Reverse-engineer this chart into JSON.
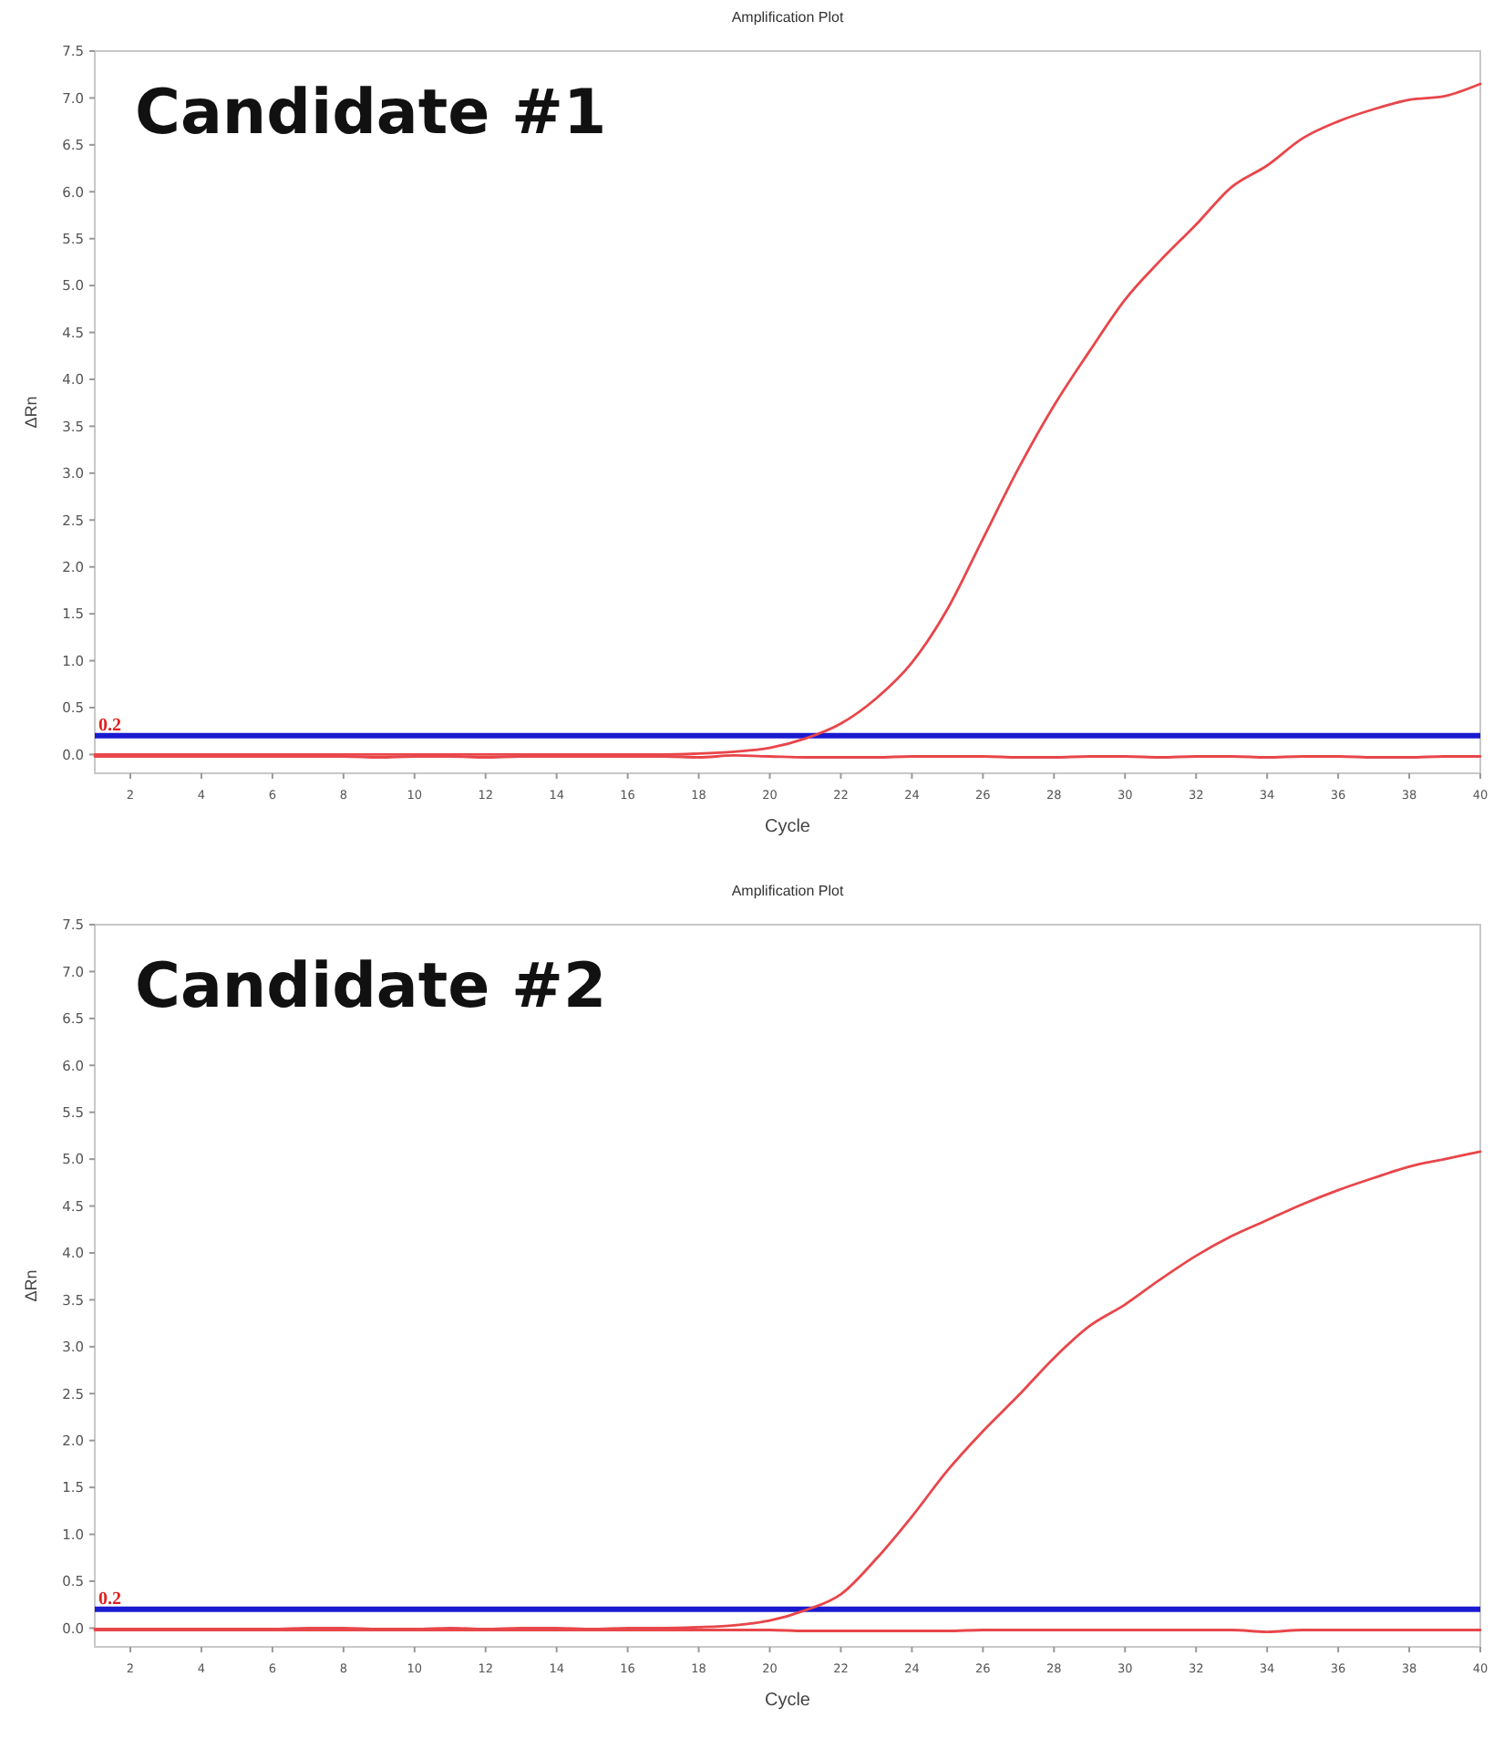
{
  "chart_data": [
    {
      "type": "line",
      "title": "Amplification Plot",
      "xlabel": "Cycle",
      "ylabel": "ΔRn",
      "annotations": [
        "Candidate #1"
      ],
      "x": [
        1,
        2,
        3,
        4,
        5,
        6,
        7,
        8,
        9,
        10,
        11,
        12,
        13,
        14,
        15,
        16,
        17,
        18,
        19,
        20,
        21,
        22,
        23,
        24,
        25,
        26,
        27,
        28,
        29,
        30,
        31,
        32,
        33,
        34,
        35,
        36,
        37,
        38,
        39,
        40
      ],
      "series": [
        {
          "color": "#e8464a",
          "values": [
            0,
            0,
            0,
            0,
            0,
            0,
            0,
            0,
            0,
            0,
            0,
            0,
            0,
            0,
            0,
            0,
            0,
            0.01,
            0.03,
            0.07,
            0.17,
            0.33,
            0.6,
            0.98,
            1.55,
            2.3,
            3.05,
            3.72,
            4.3,
            4.85,
            5.27,
            5.65,
            6.05,
            6.28,
            6.57,
            6.75,
            6.88,
            6.98,
            7.02,
            7.15
          ]
        },
        {
          "color": "#e8464a",
          "values": [
            -0.02,
            -0.02,
            -0.02,
            -0.02,
            -0.02,
            -0.02,
            -0.02,
            -0.02,
            -0.03,
            -0.02,
            -0.02,
            -0.03,
            -0.02,
            -0.02,
            -0.02,
            -0.02,
            -0.02,
            -0.03,
            -0.01,
            -0.02,
            -0.03,
            -0.03,
            -0.03,
            -0.02,
            -0.02,
            -0.02,
            -0.03,
            -0.03,
            -0.02,
            -0.02,
            -0.03,
            -0.02,
            -0.02,
            -0.03,
            -0.02,
            -0.02,
            -0.03,
            -0.03,
            -0.02,
            -0.02
          ]
        }
      ],
      "xlim": [
        1,
        40
      ],
      "xticks": [
        2,
        4,
        6,
        8,
        10,
        12,
        14,
        16,
        18,
        20,
        22,
        24,
        26,
        28,
        30,
        32,
        34,
        36,
        38,
        40
      ],
      "ylim": [
        -0.2,
        7.5
      ],
      "yticks": [
        {
          "value": 0,
          "label": "0.0"
        },
        0.5,
        {
          "value": 1,
          "label": "1.0"
        },
        1.5,
        {
          "value": 2,
          "label": "2.0"
        },
        2.5,
        {
          "value": 3,
          "label": "3.0"
        },
        3.5,
        {
          "value": 4,
          "label": "4.0"
        },
        4.5,
        {
          "value": 5,
          "label": "5.0"
        },
        5.5,
        {
          "value": 6,
          "label": "6.0"
        },
        6.5,
        {
          "value": 7,
          "label": "7.0"
        },
        7.5
      ],
      "ref_lines": [
        {
          "axis": "y",
          "value": 0.2,
          "label": "0.2",
          "color": "#1a1ad0"
        }
      ]
    },
    {
      "type": "line",
      "title": "Amplification Plot",
      "xlabel": "Cycle",
      "ylabel": "ΔRn",
      "annotations": [
        "Candidate #2"
      ],
      "x": [
        1,
        2,
        3,
        4,
        5,
        6,
        7,
        8,
        9,
        10,
        11,
        12,
        13,
        14,
        15,
        16,
        17,
        18,
        19,
        20,
        21,
        22,
        23,
        24,
        25,
        26,
        27,
        28,
        29,
        30,
        31,
        32,
        33,
        34,
        35,
        36,
        37,
        38,
        39,
        40
      ],
      "series": [
        {
          "color": "#e8464a",
          "values": [
            -0.01,
            -0.01,
            -0.01,
            -0.01,
            -0.01,
            -0.01,
            0,
            0,
            -0.01,
            -0.01,
            0,
            -0.01,
            0,
            0,
            -0.01,
            0,
            0,
            0.01,
            0.03,
            0.08,
            0.19,
            0.36,
            0.74,
            1.19,
            1.68,
            2.1,
            2.48,
            2.88,
            3.22,
            3.45,
            3.72,
            3.97,
            4.18,
            4.35,
            4.52,
            4.67,
            4.8,
            4.92,
            5.0,
            5.08
          ]
        },
        {
          "color": "#e8464a",
          "values": [
            -0.02,
            -0.02,
            -0.02,
            -0.02,
            -0.02,
            -0.02,
            -0.02,
            -0.02,
            -0.02,
            -0.02,
            -0.02,
            -0.02,
            -0.02,
            -0.02,
            -0.02,
            -0.02,
            -0.02,
            -0.02,
            -0.02,
            -0.02,
            -0.03,
            -0.03,
            -0.03,
            -0.03,
            -0.03,
            -0.02,
            -0.02,
            -0.02,
            -0.02,
            -0.02,
            -0.02,
            -0.02,
            -0.02,
            -0.04,
            -0.02,
            -0.02,
            -0.02,
            -0.02,
            -0.02,
            -0.02
          ]
        }
      ],
      "xlim": [
        1,
        40
      ],
      "xticks": [
        2,
        4,
        6,
        8,
        10,
        12,
        14,
        16,
        18,
        20,
        22,
        24,
        26,
        28,
        30,
        32,
        34,
        36,
        38,
        40
      ],
      "ylim": [
        -0.2,
        7.5
      ],
      "yticks": [
        {
          "value": 0,
          "label": "0.0"
        },
        0.5,
        {
          "value": 1,
          "label": "1.0"
        },
        1.5,
        {
          "value": 2,
          "label": "2.0"
        },
        2.5,
        {
          "value": 3,
          "label": "3.0"
        },
        3.5,
        {
          "value": 4,
          "label": "4.0"
        },
        4.5,
        {
          "value": 5,
          "label": "5.0"
        },
        5.5,
        {
          "value": 6,
          "label": "6.0"
        },
        6.5,
        {
          "value": 7,
          "label": "7.0"
        },
        7.5
      ],
      "ref_lines": [
        {
          "axis": "y",
          "value": 0.2,
          "label": "0.2",
          "color": "#1a1ad0"
        }
      ]
    }
  ]
}
